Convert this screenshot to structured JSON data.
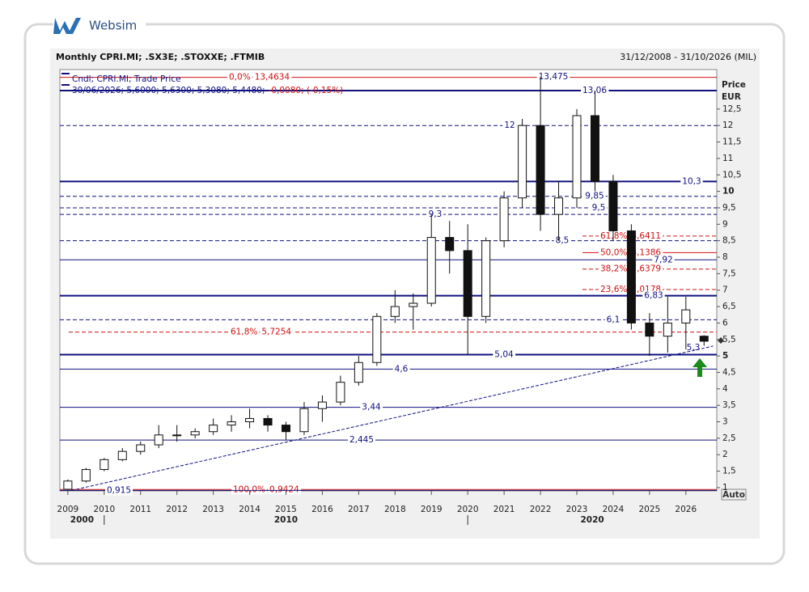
{
  "brand": "Websim",
  "chart_data": {
    "type": "candlestick",
    "title": "Monthly CPRI.MI; .SX3E; .STOXXE; .FTMIB",
    "date_range": "31/12/2008 - 31/10/2026 (MIL)",
    "legend_title": "Cndl; CPRI.MI; Trade Price",
    "legend_values": "30/06/2026; 5,6000; 5,6300; 5,3080; 5,4480;",
    "legend_change": "-0,0080; (-0,15%)",
    "y_axis_label": "Price",
    "y_axis_unit": "EUR",
    "auto_button": "Auto",
    "xlim": [
      2008.78,
      2026.85
    ],
    "ylim": [
      0.9,
      13.7
    ],
    "xticks": [
      2009,
      2010,
      2011,
      2012,
      2013,
      2014,
      2015,
      2016,
      2017,
      2018,
      2019,
      2020,
      2021,
      2022,
      2023,
      2024,
      2025,
      2026
    ],
    "decades": [
      "2000",
      "2010",
      "2020"
    ],
    "yticks": [
      1,
      {
        "value": 1.5,
        "label": "1,5"
      },
      2,
      {
        "value": 2.5,
        "label": "2,5"
      },
      3,
      {
        "value": 3.5,
        "label": "3,5"
      },
      4,
      {
        "value": 4.5,
        "label": "4,5"
      },
      5,
      {
        "value": 5.5,
        "label": "5,5"
      },
      6,
      {
        "value": 6.5,
        "label": "6,5"
      },
      7,
      {
        "value": 7.5,
        "label": "7,5"
      },
      8,
      {
        "value": 8.5,
        "label": "8,5"
      },
      9,
      {
        "value": 9.5,
        "label": "9,5"
      },
      10,
      {
        "value": 10.5,
        "label": "10,5"
      },
      11,
      {
        "value": 11.5,
        "label": "11,5"
      },
      12,
      {
        "value": 12.5,
        "label": "12,5"
      }
    ],
    "candles": {
      "x": [
        2009.0,
        2009.5,
        2010.0,
        2010.5,
        2011.0,
        2011.5,
        2012.0,
        2012.5,
        2013.0,
        2013.5,
        2014.0,
        2014.5,
        2015.0,
        2015.5,
        2016.0,
        2016.5,
        2017.0,
        2017.5,
        2018.0,
        2018.5,
        2019.0,
        2019.5,
        2020.0,
        2020.5,
        2021.0,
        2021.5,
        2022.0,
        2022.5,
        2023.0,
        2023.5,
        2024.0,
        2024.5,
        2025.0,
        2025.5,
        2026.0,
        2026.5
      ],
      "open": [
        0.95,
        1.2,
        1.55,
        1.85,
        2.1,
        2.3,
        2.6,
        2.6,
        2.7,
        2.9,
        3.0,
        3.1,
        2.9,
        2.7,
        3.4,
        3.6,
        4.2,
        4.8,
        6.2,
        6.5,
        6.6,
        8.6,
        8.2,
        6.2,
        8.5,
        9.8,
        12.0,
        9.3,
        9.8,
        12.3,
        10.3,
        8.8,
        6.0,
        5.6,
        6.0,
        5.6
      ],
      "high": [
        1.25,
        1.6,
        1.9,
        2.2,
        2.4,
        2.9,
        2.9,
        2.8,
        3.1,
        3.2,
        3.4,
        3.2,
        3.0,
        3.6,
        3.8,
        4.4,
        5.0,
        6.3,
        7.0,
        6.9,
        9.3,
        9.1,
        9.0,
        8.6,
        10.0,
        12.2,
        13.475,
        10.3,
        12.5,
        13.06,
        10.5,
        9.0,
        6.3,
        6.8,
        6.8,
        5.63
      ],
      "low": [
        0.915,
        1.15,
        1.5,
        1.8,
        2.0,
        2.2,
        2.4,
        2.5,
        2.6,
        2.7,
        2.8,
        2.7,
        2.445,
        2.6,
        3.0,
        3.5,
        4.1,
        4.7,
        6.0,
        5.8,
        6.5,
        7.5,
        5.04,
        6.0,
        8.3,
        9.5,
        8.8,
        8.5,
        9.5,
        10.0,
        8.5,
        5.8,
        5.0,
        5.1,
        5.2,
        5.308
      ],
      "close": [
        1.2,
        1.55,
        1.85,
        2.1,
        2.3,
        2.6,
        2.6,
        2.7,
        2.9,
        3.0,
        3.1,
        2.9,
        2.7,
        3.4,
        3.6,
        4.2,
        4.8,
        6.2,
        6.5,
        6.6,
        8.6,
        8.2,
        6.2,
        8.5,
        9.8,
        12.0,
        9.3,
        9.8,
        12.3,
        10.3,
        8.8,
        6.0,
        5.6,
        6.0,
        6.4,
        5.448
      ]
    },
    "levels": [
      {
        "value": 13.06,
        "label": "13,06",
        "style": "solid"
      },
      {
        "value": 12,
        "label": "12",
        "style": "dashed"
      },
      {
        "value": 10.3,
        "label": "10,3",
        "style": "solid"
      },
      {
        "value": 9.85,
        "label": "9,85",
        "style": "dashed"
      },
      {
        "value": 9.5,
        "label": "9,5",
        "style": "dashed"
      },
      {
        "value": 9.3,
        "label": "9,3",
        "style": "dashed"
      },
      {
        "value": 8.5,
        "label": "8,5",
        "style": "dashed"
      },
      {
        "value": 7.92,
        "label": "7,92",
        "style": "solid"
      },
      {
        "value": 6.83,
        "label": "6,83",
        "style": "solid"
      },
      {
        "value": 6.1,
        "label": "6,1",
        "style": "dashed"
      },
      {
        "value": 5.04,
        "label": "5,04",
        "style": "solid"
      },
      {
        "value": 4.6,
        "label": "4,6",
        "style": "solid"
      },
      {
        "value": 3.44,
        "label": "3,44",
        "style": "solid"
      },
      {
        "value": 2.445,
        "label": "2,445",
        "style": "solid"
      },
      {
        "value": 0.915,
        "label": "0,915",
        "style": "solid"
      },
      {
        "value": 13.475,
        "label": "13,475",
        "style": "none"
      }
    ],
    "fib_levels": [
      {
        "percent": {
          "value": 0,
          "label": "0,0%"
        },
        "level": {
          "value": 13.4634,
          "label": "13,4634"
        },
        "style": "solid"
      },
      {
        "percent": {
          "value": 100,
          "label": "100,0%"
        },
        "level": {
          "value": 0.9424,
          "label": "0,9424"
        },
        "style": "solid"
      },
      {
        "percent": {
          "value": 61.8,
          "label": "61,8%"
        },
        "level": {
          "value": 5.7254,
          "label": "5,7254"
        },
        "style": "dashed"
      },
      {
        "percent": {
          "value": 61.8,
          "label": "61,8%"
        },
        "level": {
          "value": 8.6411,
          "label": "8,6411"
        },
        "style": "dashed"
      },
      {
        "percent": {
          "value": 50,
          "label": "50,0%"
        },
        "level": {
          "value": 8.1386,
          "label": "8,1386"
        },
        "style": "solid"
      },
      {
        "percent": {
          "value": 38.2,
          "label": "38,2%"
        },
        "level": {
          "value": 7.6379,
          "label": "7,6379"
        },
        "style": "dashed"
      },
      {
        "percent": {
          "value": 23.6,
          "label": "23,6%"
        },
        "level": {
          "value": 7.0178,
          "label": "7,0178"
        },
        "style": "dashed"
      }
    ],
    "trendline": {
      "x": [
        2009.1,
        2026.75
      ],
      "values": [
        0.915,
        5.3
      ],
      "end_label": "5,3"
    },
    "colors": {
      "level": "#101080",
      "fib": "#d01010",
      "candle": "#111111"
    }
  }
}
